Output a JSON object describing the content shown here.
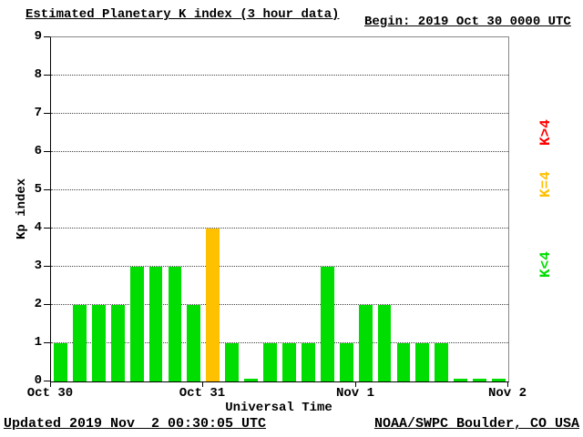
{
  "header": {
    "title": "Estimated Planetary K index (3 hour data)",
    "begin": "Begin: 2019 Oct 30 0000 UTC"
  },
  "footer": {
    "updated": "Updated 2019 Nov  2 00:30:05 UTC",
    "source": "NOAA/SWPC Boulder, CO USA"
  },
  "legend": [
    {
      "label": "K>4",
      "color": "#ff0000"
    },
    {
      "label": "K=4",
      "color": "#ffc000"
    },
    {
      "label": "K<4",
      "color": "#00dd00"
    }
  ],
  "chart_data": {
    "type": "bar",
    "title": "Estimated Planetary K index (3 hour data)",
    "xlabel": "Universal Time",
    "ylabel": "Kp index",
    "ylim": [
      0,
      9
    ],
    "grid": "dotted horizontal lines at integers 1-8",
    "legend_position": "right, rotated",
    "bin_hours": 3,
    "begin": "2019 Oct 30 0000 UTC",
    "x_tick_labels": [
      "Oct 30",
      "Oct 31",
      "Nov 1",
      "Nov 2"
    ],
    "values": [
      1,
      2,
      2,
      2,
      3,
      3,
      3,
      2,
      4,
      1,
      0,
      1,
      1,
      1,
      3,
      1,
      2,
      2,
      1,
      1,
      1,
      0,
      0,
      0
    ],
    "colors": {
      "below4": "#00dd00",
      "equal4": "#ffc000",
      "above4": "#ff0000"
    }
  }
}
